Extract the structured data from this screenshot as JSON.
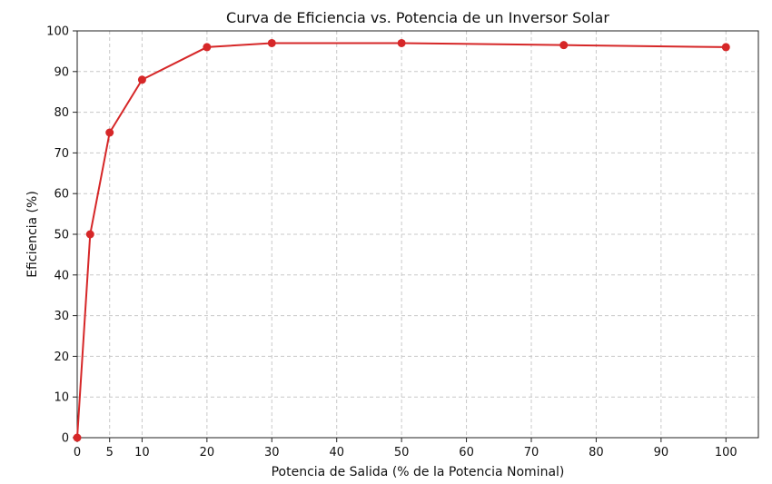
{
  "chart_data": {
    "type": "line",
    "title": "Curva de Eficiencia vs. Potencia de un Inversor Solar",
    "xlabel": "Potencia de Salida (% de la Potencia Nominal)",
    "ylabel": "Eficiencia (%)",
    "xlim": [
      0,
      105
    ],
    "ylim": [
      0,
      100
    ],
    "x_ticks": [
      0,
      5,
      10,
      20,
      30,
      40,
      50,
      60,
      70,
      80,
      90,
      100
    ],
    "y_ticks": [
      0,
      10,
      20,
      30,
      40,
      50,
      60,
      70,
      80,
      90,
      100
    ],
    "grid": true,
    "series": [
      {
        "x": [
          0,
          2,
          5,
          10,
          20,
          30,
          50,
          75,
          100
        ],
        "y": [
          0,
          50,
          75,
          88,
          96,
          97,
          97,
          96.5,
          96
        ],
        "color": "#d62728"
      }
    ]
  }
}
